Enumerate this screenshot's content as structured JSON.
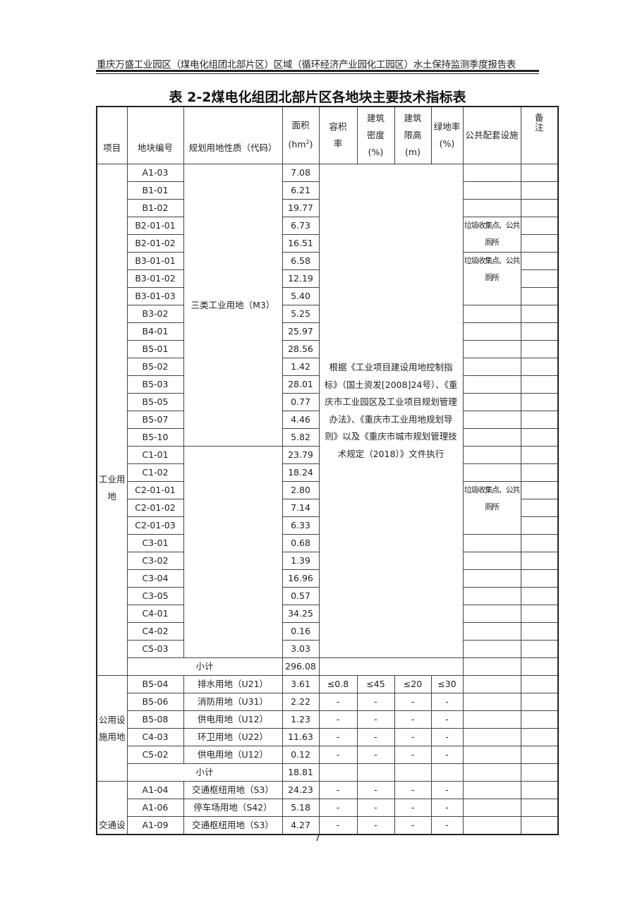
{
  "running_header": "重庆万盛工业园区（煤电化组团北部片区）区域（循环经济产业园化工园区）水土保持监测季度报告表",
  "table_title": "表 2-2煤电化组团北部片区各地块主要技术指标表",
  "columns": [
    "项目",
    "地块编号",
    "规划用地性质（代码）",
    "面积\n(hm²)",
    "容积\n率",
    "建筑\n密度\n(%)",
    "建筑\n限高\n(m)",
    "绿地率\n(%)",
    "公共配套设施",
    "备\n注"
  ],
  "industrial": {
    "category": "工业用地",
    "land_use_group1": "三类工业用地（M3）",
    "land_use_group2": "",
    "indicator_note": "根据《工业项目建设用地控制指标》（国土资发[2008]24号）、《重庆市工业园区及工业项目规划管理办法》、《重庆市工业用地规划导则》以及《重庆市城市规划管理技术规定（2018）》文件执行",
    "facility_text": "垃圾收集点、公共厕所",
    "rows": [
      {
        "code": "A1-03",
        "area": "7.08"
      },
      {
        "code": "B1-01",
        "area": "6.21"
      },
      {
        "code": "B1-02",
        "area": "19.77"
      },
      {
        "code": "B2-01-01",
        "area": "6.73"
      },
      {
        "code": "B2-01-02",
        "area": "16.51"
      },
      {
        "code": "B3-01-01",
        "area": "6.58"
      },
      {
        "code": "B3-01-02",
        "area": "12.19"
      },
      {
        "code": "B3-01-03",
        "area": "5.40"
      },
      {
        "code": "B3-02",
        "area": "5.25"
      },
      {
        "code": "B4-01",
        "area": "25.97"
      },
      {
        "code": "B5-01",
        "area": "28.56"
      },
      {
        "code": "B5-02",
        "area": "1.42"
      },
      {
        "code": "B5-03",
        "area": "28.01"
      },
      {
        "code": "B5-05",
        "area": "0.77"
      },
      {
        "code": "B5-07",
        "area": "4.46"
      },
      {
        "code": "B5-10",
        "area": "5.82"
      },
      {
        "code": "C1-01",
        "area": "23.79"
      },
      {
        "code": "C1-02",
        "area": "18.24"
      },
      {
        "code": "C2-01-01",
        "area": "2.80"
      },
      {
        "code": "C2-01-02",
        "area": "7.14"
      },
      {
        "code": "C2-01-03",
        "area": "6.33"
      },
      {
        "code": "C3-01",
        "area": "0.68"
      },
      {
        "code": "C3-02",
        "area": "1.39"
      },
      {
        "code": "C3-04",
        "area": "16.96"
      },
      {
        "code": "C3-05",
        "area": "0.57"
      },
      {
        "code": "C4-01",
        "area": "34.25"
      },
      {
        "code": "C4-02",
        "area": "0.16"
      },
      {
        "code": "C5-03",
        "area": "3.03"
      }
    ],
    "subtotal_label": "小计",
    "subtotal_area": "296.08"
  },
  "public": {
    "category": "公用设施用地",
    "rows": [
      {
        "code": "B5-04",
        "use": "排水用地（U21）",
        "area": "3.61",
        "far": "≤0.8",
        "density": "≤45",
        "height": "≤20",
        "green": "≤30"
      },
      {
        "code": "B5-06",
        "use": "消防用地（U31）",
        "area": "2.22",
        "far": "-",
        "density": "-",
        "height": "-",
        "green": "-"
      },
      {
        "code": "B5-08",
        "use": "供电用地（U12）",
        "area": "1.23",
        "far": "-",
        "density": "-",
        "height": "-",
        "green": "-"
      },
      {
        "code": "C4-03",
        "use": "环卫用地（U22）",
        "area": "11.63",
        "far": "-",
        "density": "-",
        "height": "-",
        "green": "-"
      },
      {
        "code": "C5-02",
        "use": "供电用地（U12）",
        "area": "0.12",
        "far": "-",
        "density": "-",
        "height": "-",
        "green": "-"
      }
    ],
    "subtotal_label": "小计",
    "subtotal_area": "18.81"
  },
  "traffic": {
    "category": "交通设",
    "rows": [
      {
        "code": "A1-04",
        "use": "交通枢纽用地（S3）",
        "area": "24.23",
        "far": "-",
        "density": "-",
        "height": "-",
        "green": "-"
      },
      {
        "code": "A1-06",
        "use": "停车场用地（S42）",
        "area": "5.18",
        "far": "-",
        "density": "-",
        "height": "-",
        "green": "-"
      },
      {
        "code": "A1-09",
        "use": "交通枢纽用地（S3）",
        "area": "4.27",
        "far": "-",
        "density": "-",
        "height": "-",
        "green": "-"
      }
    ]
  },
  "page_number": "7"
}
